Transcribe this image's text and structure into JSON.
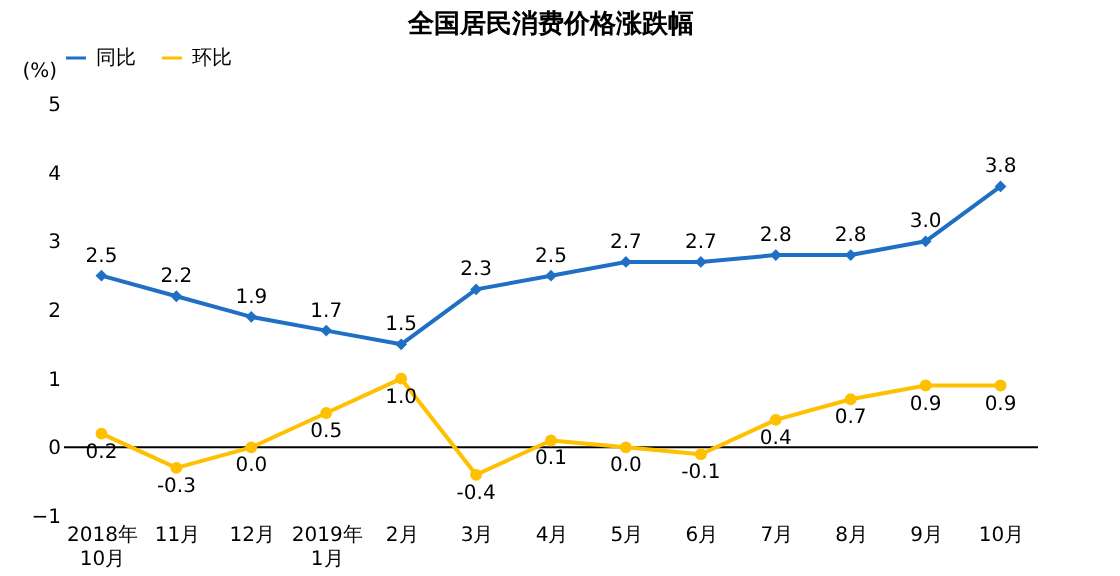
{
  "chart_data": {
    "type": "line",
    "title": "全国居民消费价格涨跌幅",
    "ylabel": "(%)",
    "categories": [
      "2018年\n10月",
      "11月",
      "12月",
      "2019年\n1月",
      "2月",
      "3月",
      "4月",
      "5月",
      "6月",
      "7月",
      "8月",
      "9月",
      "10月"
    ],
    "series": [
      {
        "name": "同比",
        "color": "#1f6fc5",
        "marker": "diamond",
        "values": [
          2.5,
          2.2,
          1.9,
          1.7,
          1.5,
          2.3,
          2.5,
          2.7,
          2.7,
          2.8,
          2.8,
          3.0,
          3.8
        ],
        "value_labels": [
          "2.5",
          "2.2",
          "1.9",
          "1.7",
          "1.5",
          "2.3",
          "2.5",
          "2.7",
          "2.7",
          "2.8",
          "2.8",
          "3.0",
          "3.8"
        ]
      },
      {
        "name": "环比",
        "color": "#ffc000",
        "marker": "circle",
        "values": [
          0.2,
          -0.3,
          0.0,
          0.5,
          1.0,
          -0.4,
          0.1,
          0.0,
          -0.1,
          0.4,
          0.7,
          0.9,
          0.9
        ],
        "value_labels": [
          "0.2",
          "-0.3",
          "0.0",
          "0.5",
          "1.0",
          "-0.4",
          "0.1",
          "0.0",
          "-0.1",
          "0.4",
          "0.7",
          "0.9",
          "0.9"
        ]
      }
    ],
    "ylim": [
      -1,
      5
    ],
    "yticks": [
      -1,
      0,
      1,
      2,
      3,
      4,
      5
    ],
    "legend": "top",
    "ref_lines": [
      {
        "axis": "y",
        "value": 0,
        "color": "#000000"
      }
    ]
  }
}
